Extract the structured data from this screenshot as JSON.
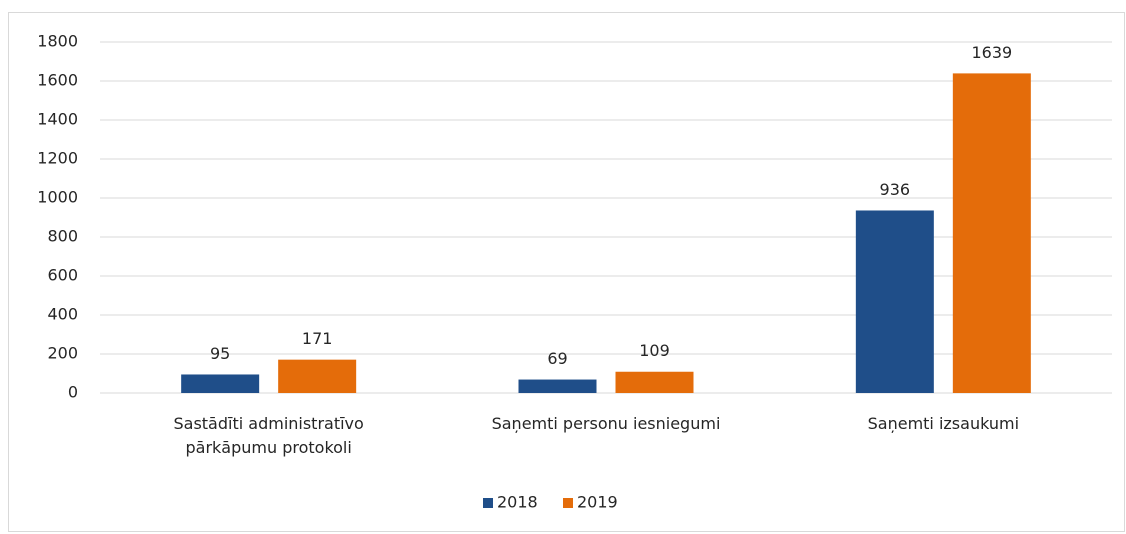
{
  "chart_data": {
    "type": "bar",
    "categories": [
      "Sastādīti administratīvo pārkāpumu protokoli",
      "Saņemti personu iesniegumi",
      "Saņemti izsaukumi"
    ],
    "series": [
      {
        "name": "2018",
        "color": "#1F4E89",
        "values": [
          95,
          69,
          936
        ]
      },
      {
        "name": "2019",
        "color": "#E46C0A",
        "values": [
          171,
          109,
          1639
        ]
      }
    ],
    "ylim": [
      0,
      1800
    ],
    "yticks": [
      0,
      200,
      400,
      600,
      800,
      1000,
      1200,
      1400,
      1600,
      1800
    ],
    "grid": true,
    "legend": "bottom"
  }
}
